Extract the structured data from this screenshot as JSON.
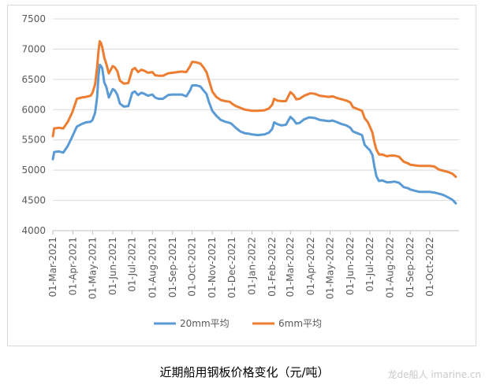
{
  "caption": "近期船用钢板价格变化（元/吨）",
  "watermark": "龙de船人 imarine.cn",
  "chart_data": {
    "type": "line",
    "title": "",
    "xlabel": "",
    "ylabel": "",
    "ylim": [
      4000,
      7500
    ],
    "yticks": [
      4000,
      4500,
      5000,
      5500,
      6000,
      6500,
      7000,
      7500
    ],
    "xlim": [
      "2021-03-01",
      "2022-11-15"
    ],
    "xtick_labels": [
      "01-Mar-2021",
      "01-Apr-2021",
      "01-May-2021",
      "01-Jun-2021",
      "01-Jul-2021",
      "01-Aug-2021",
      "01-Sep-2021",
      "01-Oct-2021",
      "01-Nov-2021",
      "01-Dec-2021",
      "01-Jan-2022",
      "01-Feb-2022",
      "01-Mar-2022",
      "01-Apr-2022",
      "01-May-2022",
      "01-Jun-2022",
      "01-Jul-2022",
      "01-Aug-2022",
      "01-Sep-2022",
      "01-Oct-2022"
    ],
    "xtick_dates": [
      "2021-03-01",
      "2021-04-01",
      "2021-05-01",
      "2021-06-01",
      "2021-07-01",
      "2021-08-01",
      "2021-09-01",
      "2021-10-01",
      "2021-11-01",
      "2021-12-01",
      "2022-01-01",
      "2022-02-01",
      "2022-03-01",
      "2022-04-01",
      "2022-05-01",
      "2022-06-01",
      "2022-07-01",
      "2022-08-01",
      "2022-09-01",
      "2022-10-01"
    ],
    "grid": "horizontal",
    "legend": "bottom",
    "series": [
      {
        "name": "20mm平均",
        "color": "#5b9bd5",
        "points": [
          [
            "2021-03-01",
            5180
          ],
          [
            "2021-03-03",
            5300
          ],
          [
            "2021-03-10",
            5310
          ],
          [
            "2021-03-17",
            5290
          ],
          [
            "2021-03-24",
            5400
          ],
          [
            "2021-03-31",
            5560
          ],
          [
            "2021-04-07",
            5720
          ],
          [
            "2021-04-14",
            5760
          ],
          [
            "2021-04-21",
            5790
          ],
          [
            "2021-04-28",
            5800
          ],
          [
            "2021-05-01",
            5830
          ],
          [
            "2021-05-05",
            5950
          ],
          [
            "2021-05-08",
            6200
          ],
          [
            "2021-05-10",
            6550
          ],
          [
            "2021-05-12",
            6740
          ],
          [
            "2021-05-14",
            6720
          ],
          [
            "2021-05-16",
            6680
          ],
          [
            "2021-05-19",
            6450
          ],
          [
            "2021-05-22",
            6380
          ],
          [
            "2021-05-26",
            6200
          ],
          [
            "2021-06-01",
            6340
          ],
          [
            "2021-06-04",
            6320
          ],
          [
            "2021-06-08",
            6250
          ],
          [
            "2021-06-12",
            6100
          ],
          [
            "2021-06-18",
            6050
          ],
          [
            "2021-06-25",
            6060
          ],
          [
            "2021-07-01",
            6280
          ],
          [
            "2021-07-05",
            6300
          ],
          [
            "2021-07-10",
            6240
          ],
          [
            "2021-07-15",
            6280
          ],
          [
            "2021-07-20",
            6260
          ],
          [
            "2021-07-25",
            6230
          ],
          [
            "2021-08-01",
            6250
          ],
          [
            "2021-08-05",
            6200
          ],
          [
            "2021-08-10",
            6180
          ],
          [
            "2021-08-17",
            6180
          ],
          [
            "2021-08-25",
            6240
          ],
          [
            "2021-09-01",
            6250
          ],
          [
            "2021-09-08",
            6250
          ],
          [
            "2021-09-15",
            6250
          ],
          [
            "2021-09-22",
            6220
          ],
          [
            "2021-09-28",
            6320
          ],
          [
            "2021-10-01",
            6400
          ],
          [
            "2021-10-08",
            6400
          ],
          [
            "2021-10-14",
            6380
          ],
          [
            "2021-10-19",
            6310
          ],
          [
            "2021-10-23",
            6260
          ],
          [
            "2021-10-27",
            6120
          ],
          [
            "2021-11-01",
            5980
          ],
          [
            "2021-11-07",
            5900
          ],
          [
            "2021-11-14",
            5830
          ],
          [
            "2021-11-21",
            5800
          ],
          [
            "2021-11-28",
            5780
          ],
          [
            "2021-12-01",
            5760
          ],
          [
            "2021-12-07",
            5700
          ],
          [
            "2021-12-14",
            5640
          ],
          [
            "2021-12-21",
            5610
          ],
          [
            "2021-12-28",
            5600
          ],
          [
            "2022-01-01",
            5590
          ],
          [
            "2022-01-10",
            5580
          ],
          [
            "2022-01-20",
            5590
          ],
          [
            "2022-01-27",
            5620
          ],
          [
            "2022-02-01",
            5680
          ],
          [
            "2022-02-04",
            5790
          ],
          [
            "2022-02-09",
            5760
          ],
          [
            "2022-02-15",
            5740
          ],
          [
            "2022-02-22",
            5750
          ],
          [
            "2022-03-01",
            5880
          ],
          [
            "2022-03-06",
            5830
          ],
          [
            "2022-03-10",
            5770
          ],
          [
            "2022-03-15",
            5780
          ],
          [
            "2022-03-22",
            5840
          ],
          [
            "2022-03-29",
            5870
          ],
          [
            "2022-04-01",
            5870
          ],
          [
            "2022-04-08",
            5860
          ],
          [
            "2022-04-15",
            5830
          ],
          [
            "2022-04-22",
            5820
          ],
          [
            "2022-04-29",
            5810
          ],
          [
            "2022-05-05",
            5820
          ],
          [
            "2022-05-12",
            5790
          ],
          [
            "2022-05-19",
            5760
          ],
          [
            "2022-05-26",
            5740
          ],
          [
            "2022-06-01",
            5700
          ],
          [
            "2022-06-05",
            5640
          ],
          [
            "2022-06-12",
            5610
          ],
          [
            "2022-06-19",
            5580
          ],
          [
            "2022-06-23",
            5420
          ],
          [
            "2022-06-28",
            5360
          ],
          [
            "2022-07-01",
            5330
          ],
          [
            "2022-07-05",
            5250
          ],
          [
            "2022-07-08",
            5060
          ],
          [
            "2022-07-11",
            4900
          ],
          [
            "2022-07-15",
            4820
          ],
          [
            "2022-07-20",
            4830
          ],
          [
            "2022-07-27",
            4800
          ],
          [
            "2022-08-01",
            4800
          ],
          [
            "2022-08-08",
            4810
          ],
          [
            "2022-08-15",
            4790
          ],
          [
            "2022-08-22",
            4720
          ],
          [
            "2022-08-29",
            4700
          ],
          [
            "2022-09-01",
            4680
          ],
          [
            "2022-09-08",
            4660
          ],
          [
            "2022-09-15",
            4640
          ],
          [
            "2022-09-22",
            4640
          ],
          [
            "2022-09-29",
            4640
          ],
          [
            "2022-10-01",
            4640
          ],
          [
            "2022-10-08",
            4630
          ],
          [
            "2022-10-15",
            4610
          ],
          [
            "2022-10-22",
            4590
          ],
          [
            "2022-10-29",
            4550
          ],
          [
            "2022-11-05",
            4510
          ],
          [
            "2022-11-10",
            4450
          ]
        ]
      },
      {
        "name": "6mm平均",
        "color": "#ed7d31",
        "points": [
          [
            "2021-03-01",
            5560
          ],
          [
            "2021-03-03",
            5690
          ],
          [
            "2021-03-10",
            5700
          ],
          [
            "2021-03-17",
            5690
          ],
          [
            "2021-03-24",
            5800
          ],
          [
            "2021-03-31",
            5960
          ],
          [
            "2021-04-07",
            6180
          ],
          [
            "2021-04-14",
            6200
          ],
          [
            "2021-04-21",
            6210
          ],
          [
            "2021-04-28",
            6230
          ],
          [
            "2021-05-01",
            6280
          ],
          [
            "2021-05-05",
            6420
          ],
          [
            "2021-05-08",
            6700
          ],
          [
            "2021-05-10",
            6950
          ],
          [
            "2021-05-12",
            7130
          ],
          [
            "2021-05-14",
            7100
          ],
          [
            "2021-05-16",
            7030
          ],
          [
            "2021-05-19",
            6860
          ],
          [
            "2021-05-22",
            6760
          ],
          [
            "2021-05-26",
            6600
          ],
          [
            "2021-06-01",
            6720
          ],
          [
            "2021-06-04",
            6700
          ],
          [
            "2021-06-08",
            6640
          ],
          [
            "2021-06-12",
            6480
          ],
          [
            "2021-06-18",
            6430
          ],
          [
            "2021-06-25",
            6440
          ],
          [
            "2021-07-01",
            6660
          ],
          [
            "2021-07-05",
            6690
          ],
          [
            "2021-07-10",
            6620
          ],
          [
            "2021-07-15",
            6660
          ],
          [
            "2021-07-20",
            6640
          ],
          [
            "2021-07-25",
            6610
          ],
          [
            "2021-08-01",
            6620
          ],
          [
            "2021-08-05",
            6570
          ],
          [
            "2021-08-10",
            6560
          ],
          [
            "2021-08-17",
            6560
          ],
          [
            "2021-08-25",
            6600
          ],
          [
            "2021-09-01",
            6610
          ],
          [
            "2021-09-08",
            6620
          ],
          [
            "2021-09-15",
            6630
          ],
          [
            "2021-09-22",
            6620
          ],
          [
            "2021-09-28",
            6720
          ],
          [
            "2021-10-01",
            6790
          ],
          [
            "2021-10-08",
            6780
          ],
          [
            "2021-10-14",
            6760
          ],
          [
            "2021-10-19",
            6690
          ],
          [
            "2021-10-23",
            6620
          ],
          [
            "2021-10-27",
            6480
          ],
          [
            "2021-11-01",
            6300
          ],
          [
            "2021-11-07",
            6210
          ],
          [
            "2021-11-14",
            6160
          ],
          [
            "2021-11-21",
            6140
          ],
          [
            "2021-11-28",
            6130
          ],
          [
            "2021-12-01",
            6100
          ],
          [
            "2021-12-07",
            6060
          ],
          [
            "2021-12-14",
            6030
          ],
          [
            "2021-12-21",
            6000
          ],
          [
            "2021-12-28",
            5990
          ],
          [
            "2022-01-01",
            5980
          ],
          [
            "2022-01-10",
            5980
          ],
          [
            "2022-01-20",
            5990
          ],
          [
            "2022-01-27",
            6020
          ],
          [
            "2022-02-01",
            6080
          ],
          [
            "2022-02-04",
            6180
          ],
          [
            "2022-02-09",
            6150
          ],
          [
            "2022-02-15",
            6140
          ],
          [
            "2022-02-22",
            6140
          ],
          [
            "2022-03-01",
            6290
          ],
          [
            "2022-03-06",
            6240
          ],
          [
            "2022-03-10",
            6170
          ],
          [
            "2022-03-15",
            6180
          ],
          [
            "2022-03-22",
            6230
          ],
          [
            "2022-03-29",
            6260
          ],
          [
            "2022-04-01",
            6270
          ],
          [
            "2022-04-08",
            6260
          ],
          [
            "2022-04-15",
            6230
          ],
          [
            "2022-04-22",
            6220
          ],
          [
            "2022-04-29",
            6210
          ],
          [
            "2022-05-05",
            6220
          ],
          [
            "2022-05-12",
            6190
          ],
          [
            "2022-05-19",
            6170
          ],
          [
            "2022-05-26",
            6150
          ],
          [
            "2022-06-01",
            6120
          ],
          [
            "2022-06-05",
            6040
          ],
          [
            "2022-06-12",
            6010
          ],
          [
            "2022-06-19",
            5980
          ],
          [
            "2022-06-23",
            5860
          ],
          [
            "2022-06-28",
            5790
          ],
          [
            "2022-07-01",
            5720
          ],
          [
            "2022-07-05",
            5620
          ],
          [
            "2022-07-08",
            5460
          ],
          [
            "2022-07-11",
            5340
          ],
          [
            "2022-07-15",
            5260
          ],
          [
            "2022-07-20",
            5260
          ],
          [
            "2022-07-27",
            5230
          ],
          [
            "2022-08-01",
            5240
          ],
          [
            "2022-08-08",
            5240
          ],
          [
            "2022-08-15",
            5220
          ],
          [
            "2022-08-22",
            5140
          ],
          [
            "2022-08-29",
            5110
          ],
          [
            "2022-09-01",
            5090
          ],
          [
            "2022-09-08",
            5080
          ],
          [
            "2022-09-15",
            5070
          ],
          [
            "2022-09-22",
            5070
          ],
          [
            "2022-09-29",
            5070
          ],
          [
            "2022-10-01",
            5070
          ],
          [
            "2022-10-08",
            5060
          ],
          [
            "2022-10-15",
            5010
          ],
          [
            "2022-10-22",
            4990
          ],
          [
            "2022-10-29",
            4970
          ],
          [
            "2022-11-05",
            4940
          ],
          [
            "2022-11-10",
            4890
          ]
        ]
      }
    ]
  }
}
